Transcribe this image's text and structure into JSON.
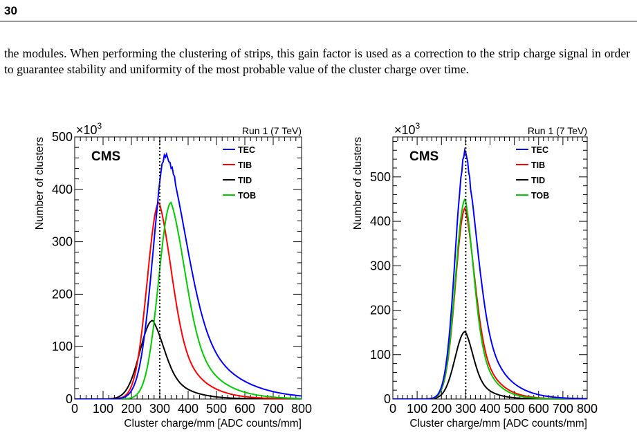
{
  "page": {
    "number": "30",
    "paragraph": "the modules. When performing the clustering of strips, this gain factor is used as a correction to the strip charge signal in order to guarantee stability and uniformity of the most probable value of the cluster charge over time."
  },
  "colors": {
    "TEC": "#0000ff",
    "TIB": "#ff0000",
    "TID": "#000000",
    "TOB": "#00cc00"
  },
  "chart_data": [
    {
      "type": "line",
      "label": "CMS",
      "run_label": "Run 1 (7 TeV)",
      "multiplier": "×10",
      "exponent": "3",
      "xlabel": "Cluster charge/mm [ADC counts/mm]",
      "ylabel": "Number of clusters",
      "xlim": [
        0,
        800
      ],
      "ylim": [
        0,
        500
      ],
      "xticks": [
        "0",
        "100",
        "200",
        "300",
        "400",
        "500",
        "600",
        "700",
        "800"
      ],
      "yticks": [
        {
          "value": 0,
          "label": "0"
        },
        {
          "value": 100,
          "label": "100"
        },
        {
          "value": 200,
          "label": "200"
        },
        {
          "value": 300,
          "label": "300"
        },
        {
          "value": 400,
          "label": "400"
        },
        {
          "value": 500,
          "label": "500"
        }
      ],
      "reference_line_x": 300,
      "legend_position": "top-right",
      "series": [
        {
          "name": "TEC",
          "peak_x": 325,
          "peak_y": 470,
          "sigma_left": 48,
          "tail": 180,
          "x0": 150
        },
        {
          "name": "TIB",
          "peak_x": 298,
          "peak_y": 375,
          "sigma_left": 42,
          "tail": 115,
          "x0": 130
        },
        {
          "name": "TID",
          "peak_x": 275,
          "peak_y": 150,
          "sigma_left": 45,
          "tail": 105,
          "x0": 120
        },
        {
          "name": "TOB",
          "peak_x": 340,
          "peak_y": 375,
          "sigma_left": 44,
          "tail": 130,
          "x0": 160
        }
      ]
    },
    {
      "type": "line",
      "label": "CMS",
      "run_label": "Run 1 (7 TeV)",
      "multiplier": "×10",
      "exponent": "3",
      "xlabel": "Cluster charge/mm [ADC counts/mm]",
      "ylabel": "Number of clusters",
      "xlim": [
        0,
        800
      ],
      "ylim": [
        0,
        590
      ],
      "xticks": [
        "0",
        "100",
        "200",
        "300",
        "400",
        "500",
        "600",
        "700",
        "800"
      ],
      "yticks": [
        {
          "value": 0,
          "label": "0"
        },
        {
          "value": 100,
          "label": "100"
        },
        {
          "value": 200,
          "label": "200"
        },
        {
          "value": 300,
          "label": "300"
        },
        {
          "value": 400,
          "label": "400"
        },
        {
          "value": 500,
          "label": "500"
        }
      ],
      "reference_line_x": 300,
      "legend_position": "top-right",
      "series": [
        {
          "name": "TEC",
          "peak_x": 298,
          "peak_y": 555,
          "sigma_left": 40,
          "tail": 125,
          "x0": 140
        },
        {
          "name": "TIB",
          "peak_x": 298,
          "peak_y": 430,
          "sigma_left": 40,
          "tail": 100,
          "x0": 140
        },
        {
          "name": "TID",
          "peak_x": 298,
          "peak_y": 152,
          "sigma_left": 42,
          "tail": 85,
          "x0": 130
        },
        {
          "name": "TOB",
          "peak_x": 298,
          "peak_y": 450,
          "sigma_left": 40,
          "tail": 90,
          "x0": 140
        }
      ]
    }
  ]
}
